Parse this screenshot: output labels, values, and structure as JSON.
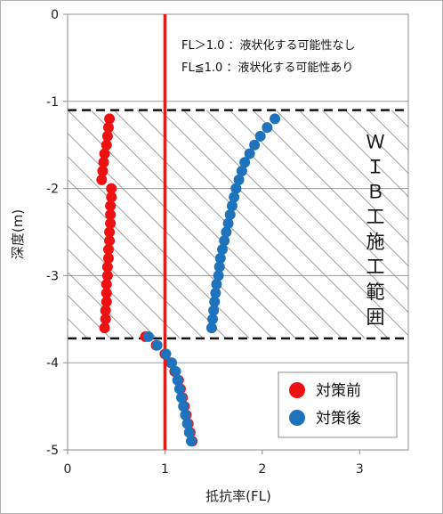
{
  "chart_data": {
    "type": "scatter",
    "xlabel": "抵抗率(FL)",
    "ylabel": "深度(m)",
    "xlim": [
      0,
      3.5
    ],
    "ylim": [
      -5,
      0
    ],
    "x_ticks": [
      "0",
      "1",
      "2",
      "3"
    ],
    "y_ticks": [
      "0",
      "-1",
      "-2",
      "-3",
      "-4",
      "-5"
    ],
    "grid": "horizontal",
    "notes": [
      "FL＞1.0 ：液状化する可能性なし",
      "FL≦1.0 ：液状化する可能性あり"
    ],
    "reference_line": {
      "x": 1.0,
      "color": "#e31b1b"
    },
    "treated_zone": {
      "top": -1.1,
      "bottom": -3.72,
      "label_chars": [
        "Ｗ",
        "Ｉ",
        "Ｂ",
        "工",
        "施",
        "工",
        "範",
        "囲"
      ]
    },
    "legend_position": "lower-right",
    "series": [
      {
        "name": "対策前",
        "color": "#ee1111",
        "points": [
          [
            0.43,
            -1.2
          ],
          [
            0.42,
            -1.3
          ],
          [
            0.41,
            -1.4
          ],
          [
            0.4,
            -1.5
          ],
          [
            0.38,
            -1.6
          ],
          [
            0.37,
            -1.7
          ],
          [
            0.36,
            -1.8
          ],
          [
            0.35,
            -1.9
          ],
          [
            0.45,
            -2.0
          ],
          [
            0.45,
            -2.1
          ],
          [
            0.44,
            -2.2
          ],
          [
            0.44,
            -2.3
          ],
          [
            0.44,
            -2.4
          ],
          [
            0.43,
            -2.5
          ],
          [
            0.43,
            -2.6
          ],
          [
            0.42,
            -2.7
          ],
          [
            0.42,
            -2.8
          ],
          [
            0.41,
            -2.9
          ],
          [
            0.41,
            -3.0
          ],
          [
            0.4,
            -3.1
          ],
          [
            0.4,
            -3.2
          ],
          [
            0.4,
            -3.3
          ],
          [
            0.39,
            -3.4
          ],
          [
            0.39,
            -3.5
          ],
          [
            0.38,
            -3.6
          ],
          [
            0.8,
            -3.7
          ],
          [
            0.91,
            -3.8
          ],
          [
            1.0,
            -3.9
          ],
          [
            1.06,
            -4.0
          ],
          [
            1.1,
            -4.1
          ],
          [
            1.14,
            -4.2
          ],
          [
            1.16,
            -4.3
          ],
          [
            1.18,
            -4.4
          ],
          [
            1.2,
            -4.5
          ],
          [
            1.22,
            -4.6
          ],
          [
            1.24,
            -4.7
          ],
          [
            1.26,
            -4.8
          ],
          [
            1.28,
            -4.9
          ]
        ]
      },
      {
        "name": "対策後",
        "color": "#1f73bd",
        "points": [
          [
            2.13,
            -1.2
          ],
          [
            2.05,
            -1.3
          ],
          [
            1.98,
            -1.4
          ],
          [
            1.92,
            -1.5
          ],
          [
            1.87,
            -1.6
          ],
          [
            1.82,
            -1.7
          ],
          [
            1.79,
            -1.8
          ],
          [
            1.76,
            -1.9
          ],
          [
            1.73,
            -2.0
          ],
          [
            1.71,
            -2.1
          ],
          [
            1.69,
            -2.2
          ],
          [
            1.67,
            -2.3
          ],
          [
            1.65,
            -2.4
          ],
          [
            1.63,
            -2.5
          ],
          [
            1.61,
            -2.6
          ],
          [
            1.59,
            -2.7
          ],
          [
            1.57,
            -2.8
          ],
          [
            1.56,
            -2.9
          ],
          [
            1.55,
            -3.0
          ],
          [
            1.53,
            -3.1
          ],
          [
            1.52,
            -3.2
          ],
          [
            1.51,
            -3.3
          ],
          [
            1.5,
            -3.4
          ],
          [
            1.49,
            -3.5
          ],
          [
            1.48,
            -3.6
          ],
          [
            0.83,
            -3.7
          ],
          [
            0.92,
            -3.8
          ],
          [
            1.01,
            -3.9
          ],
          [
            1.07,
            -4.0
          ],
          [
            1.11,
            -4.1
          ],
          [
            1.13,
            -4.2
          ],
          [
            1.15,
            -4.3
          ],
          [
            1.17,
            -4.4
          ],
          [
            1.19,
            -4.5
          ],
          [
            1.21,
            -4.6
          ],
          [
            1.23,
            -4.7
          ],
          [
            1.25,
            -4.8
          ],
          [
            1.27,
            -4.9
          ]
        ]
      }
    ]
  }
}
